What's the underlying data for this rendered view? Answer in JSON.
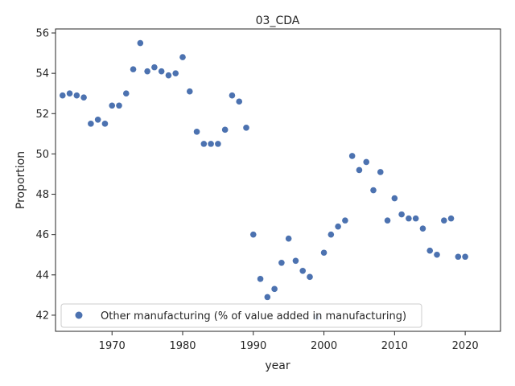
{
  "chart_data": {
    "type": "scatter",
    "title": "03_CDA",
    "xlabel": "year",
    "ylabel": "Proportion",
    "xlim": [
      1962,
      2025
    ],
    "ylim": [
      41.2,
      56.2
    ],
    "xticks": [
      1970,
      1980,
      1990,
      2000,
      2010,
      2020
    ],
    "yticks": [
      42,
      44,
      46,
      48,
      50,
      52,
      54,
      56
    ],
    "grid": false,
    "legend_position": "lower-left",
    "series": [
      {
        "name": "Other manufacturing (% of value added in manufacturing)",
        "color": "#4c72b0",
        "x": [
          1963,
          1964,
          1965,
          1966,
          1967,
          1968,
          1969,
          1970,
          1971,
          1972,
          1973,
          1974,
          1975,
          1976,
          1977,
          1978,
          1979,
          1980,
          1981,
          1982,
          1983,
          1984,
          1985,
          1986,
          1987,
          1988,
          1989,
          1990,
          1991,
          1992,
          1993,
          1994,
          1995,
          1996,
          1997,
          1998,
          1999,
          2000,
          2001,
          2002,
          2003,
          2004,
          2005,
          2006,
          2007,
          2008,
          2009,
          2010,
          2011,
          2012,
          2013,
          2014,
          2015,
          2016,
          2017,
          2018,
          2019,
          2020
        ],
        "y": [
          52.9,
          53.0,
          52.9,
          52.8,
          51.5,
          51.7,
          51.5,
          52.4,
          52.4,
          53.0,
          54.2,
          55.5,
          54.1,
          54.3,
          54.1,
          53.9,
          54.0,
          54.8,
          53.1,
          51.1,
          50.5,
          50.5,
          50.5,
          51.2,
          52.9,
          52.6,
          51.3,
          46.0,
          43.8,
          42.9,
          43.3,
          44.6,
          45.8,
          44.7,
          44.2,
          43.9,
          41.9,
          45.1,
          46.0,
          46.4,
          46.7,
          49.9,
          49.2,
          49.6,
          48.2,
          49.1,
          46.7,
          47.8,
          47.0,
          46.8,
          46.8,
          46.3,
          45.2,
          45.0,
          46.7,
          46.8,
          44.9,
          44.9
        ]
      }
    ]
  }
}
